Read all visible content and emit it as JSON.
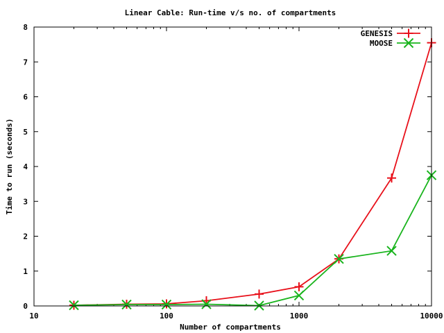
{
  "chart_data": {
    "type": "line",
    "title": "Linear Cable: Run-time v/s no. of compartments",
    "xlabel": "Number of compartments",
    "ylabel": "Time to run (seconds)",
    "x_scale": "log",
    "xlim": [
      10,
      10000
    ],
    "ylim": [
      0,
      8
    ],
    "x_ticks": [
      10,
      100,
      1000,
      10000
    ],
    "x_tick_labels": [
      "10",
      "100",
      "1000",
      "10000"
    ],
    "y_ticks": [
      0,
      1,
      2,
      3,
      4,
      5,
      6,
      7,
      8
    ],
    "y_tick_labels": [
      "0",
      "1",
      "2",
      "3",
      "4",
      "5",
      "6",
      "7",
      "8"
    ],
    "legend_position": "top-right",
    "x": [
      20,
      50,
      100,
      200,
      500,
      1000,
      2000,
      5000,
      10000
    ],
    "series": [
      {
        "name": "GENESIS",
        "color": "#e8101a",
        "marker": "plus",
        "values": [
          0.02,
          0.05,
          0.06,
          0.15,
          0.34,
          0.55,
          1.35,
          3.67,
          7.55
        ]
      },
      {
        "name": "MOOSE",
        "color": "#19b41d",
        "marker": "x",
        "values": [
          0.02,
          0.04,
          0.04,
          0.05,
          0.01,
          0.3,
          1.35,
          1.58,
          3.75
        ]
      }
    ]
  }
}
